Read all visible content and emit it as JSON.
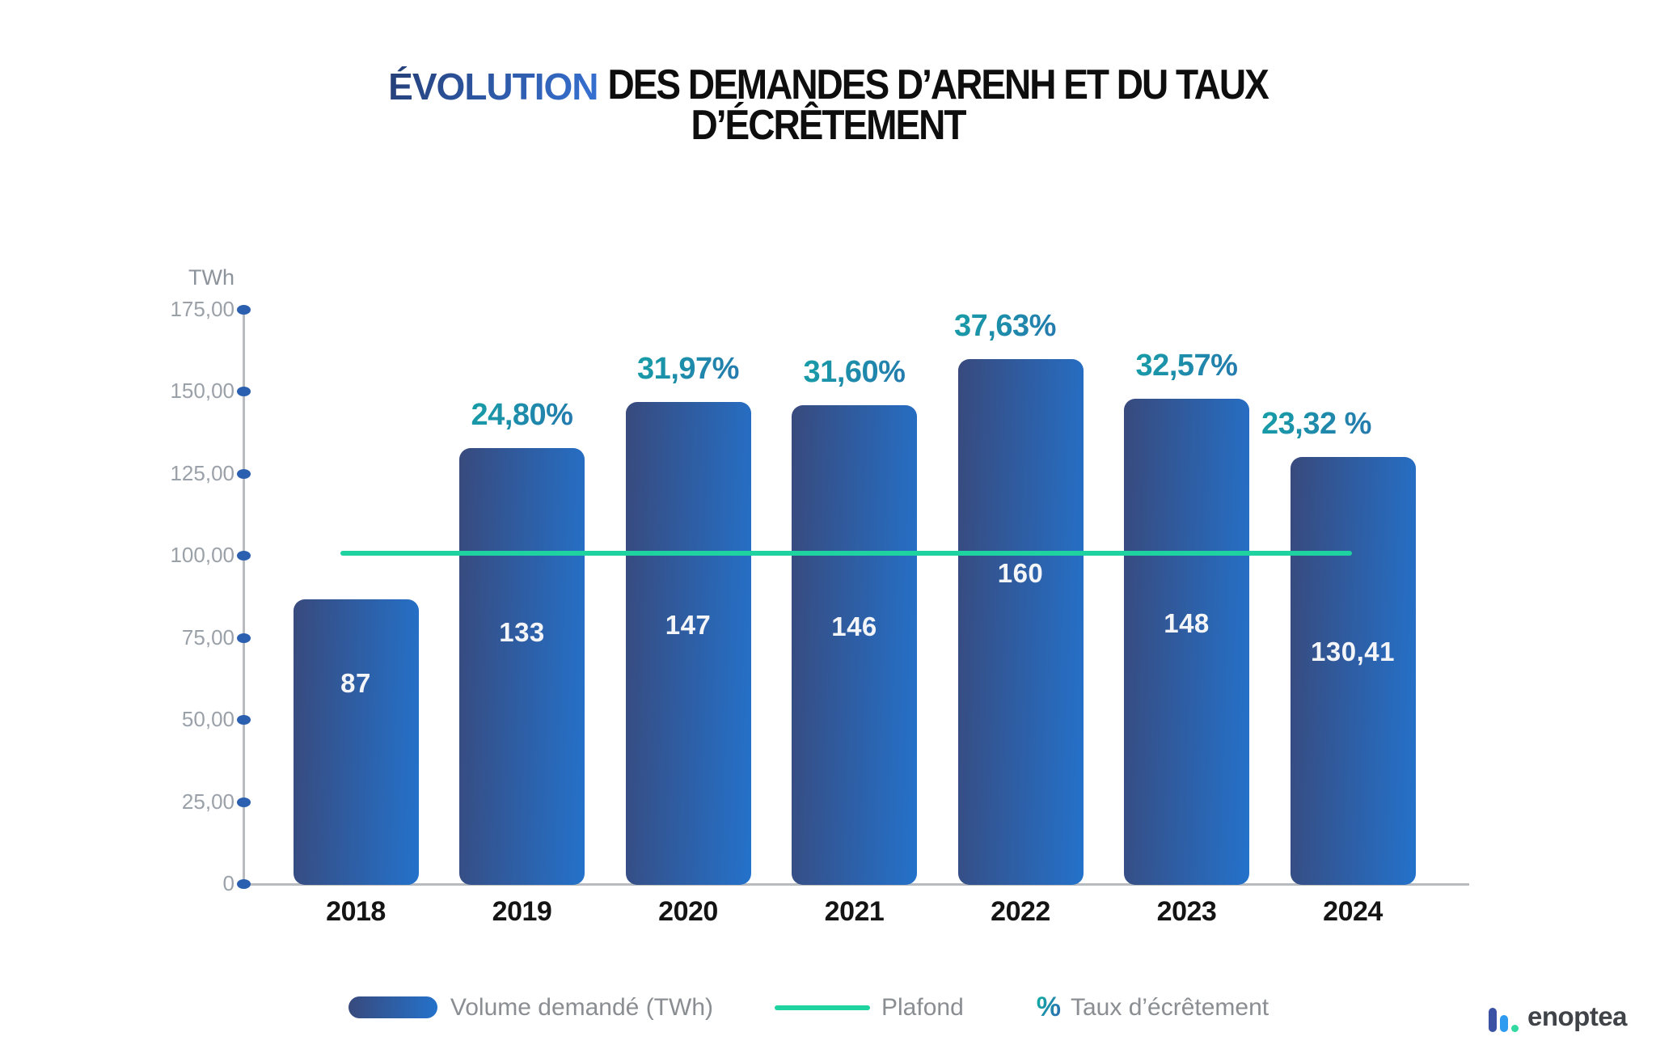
{
  "title": {
    "highlight": "ÉVOLUTION",
    "rest_line1": "DES DEMANDES D’ARENH ET DU TAUX",
    "line2": "D’ÉCRÊTEMENT"
  },
  "chart_data": {
    "type": "bar",
    "title": "Évolution des demandes d’ARENH et du taux d’écrêtement",
    "unit_label": "TWh",
    "categories": [
      "2018",
      "2019",
      "2020",
      "2021",
      "2022",
      "2023",
      "2024"
    ],
    "series": [
      {
        "name": "Volume demandé (TWh)",
        "values": [
          87,
          133,
          147,
          146,
          160,
          148,
          130.41
        ],
        "value_labels": [
          "87",
          "133",
          "147",
          "146",
          "160",
          "148",
          "130,41"
        ]
      },
      {
        "name": "Taux d’écrêtement",
        "unit": "%",
        "values": [
          null,
          24.8,
          31.97,
          31.6,
          37.63,
          32.57,
          23.32
        ],
        "value_labels": [
          "",
          "24,80%",
          "31,97%",
          "31,60%",
          "37,63%",
          "32,57%",
          "23,32 %"
        ]
      }
    ],
    "plafond": {
      "name": "Plafond",
      "value": 100
    },
    "ylim": [
      0,
      175
    ],
    "ytick_values": [
      175,
      150,
      125,
      100,
      75,
      50,
      25,
      0
    ],
    "ytick_labels": [
      "175,00",
      "150,00",
      "125,00",
      "100,00",
      "75,00",
      "50,00",
      "25,00",
      "0"
    ],
    "grid": false,
    "legend_position": "bottom"
  },
  "legend": {
    "volume_label": "Volume demandé (TWh)",
    "plafond_label": "Plafond",
    "percent_symbol": "%",
    "taux_label": "Taux d’écrêtement"
  },
  "logo": {
    "text": "enoptea"
  },
  "colors": {
    "bar_gradient_start": "#384a7d",
    "bar_gradient_end": "#2472cb",
    "plafond_line": "#1fd3a1",
    "pct_gradient_start": "#0fb3a2",
    "pct_gradient_end": "#2d64b3",
    "title_gradient_start": "#253f77",
    "title_gradient_end": "#3672d4",
    "axis": "#b8bbbf",
    "tick_text": "#9ba1a8",
    "tick_dot": "#2b5fb0",
    "legend_text": "#8a8d91"
  }
}
